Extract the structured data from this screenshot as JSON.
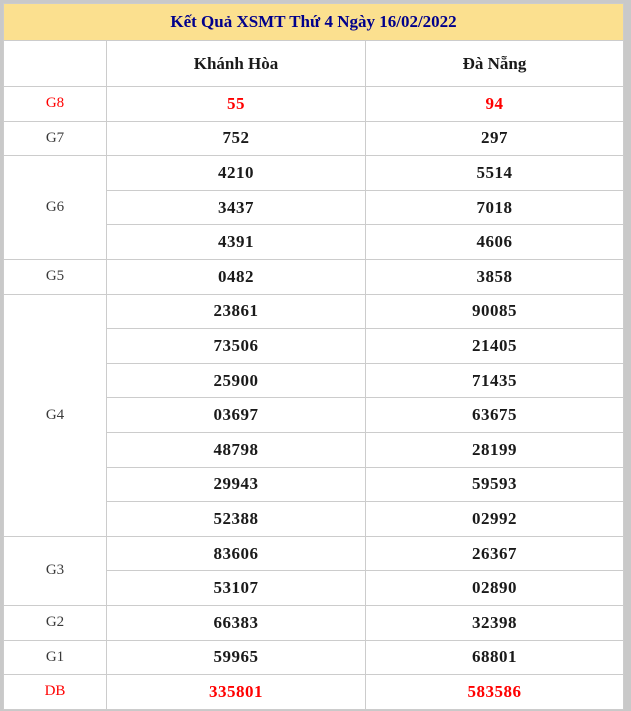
{
  "title": "Kết Quả XSMT Thứ 4 Ngày 16/02/2022",
  "columns": {
    "col1": "Khánh Hòa",
    "col2": "Đà Nẵng"
  },
  "colors": {
    "title_bg": "#fbe08f",
    "title_text": "#00008b",
    "highlight_red": "#ff0000",
    "cell_border": "#cccccc",
    "page_bg": "#c9c9c9"
  },
  "prizes": [
    {
      "label": "G8",
      "highlight": true,
      "khanh_hoa": [
        "55"
      ],
      "da_nang": [
        "94"
      ]
    },
    {
      "label": "G7",
      "highlight": false,
      "khanh_hoa": [
        "752"
      ],
      "da_nang": [
        "297"
      ]
    },
    {
      "label": "G6",
      "highlight": false,
      "khanh_hoa": [
        "4210",
        "3437",
        "4391"
      ],
      "da_nang": [
        "5514",
        "7018",
        "4606"
      ]
    },
    {
      "label": "G5",
      "highlight": false,
      "khanh_hoa": [
        "0482"
      ],
      "da_nang": [
        "3858"
      ]
    },
    {
      "label": "G4",
      "highlight": false,
      "khanh_hoa": [
        "23861",
        "73506",
        "25900",
        "03697",
        "48798",
        "29943",
        "52388"
      ],
      "da_nang": [
        "90085",
        "21405",
        "71435",
        "63675",
        "28199",
        "59593",
        "02992"
      ]
    },
    {
      "label": "G3",
      "highlight": false,
      "khanh_hoa": [
        "83606",
        "53107"
      ],
      "da_nang": [
        "26367",
        "02890"
      ]
    },
    {
      "label": "G2",
      "highlight": false,
      "khanh_hoa": [
        "66383"
      ],
      "da_nang": [
        "32398"
      ]
    },
    {
      "label": "G1",
      "highlight": false,
      "khanh_hoa": [
        "59965"
      ],
      "da_nang": [
        "68801"
      ]
    },
    {
      "label": "DB",
      "highlight": true,
      "khanh_hoa": [
        "335801"
      ],
      "da_nang": [
        "583586"
      ]
    }
  ]
}
